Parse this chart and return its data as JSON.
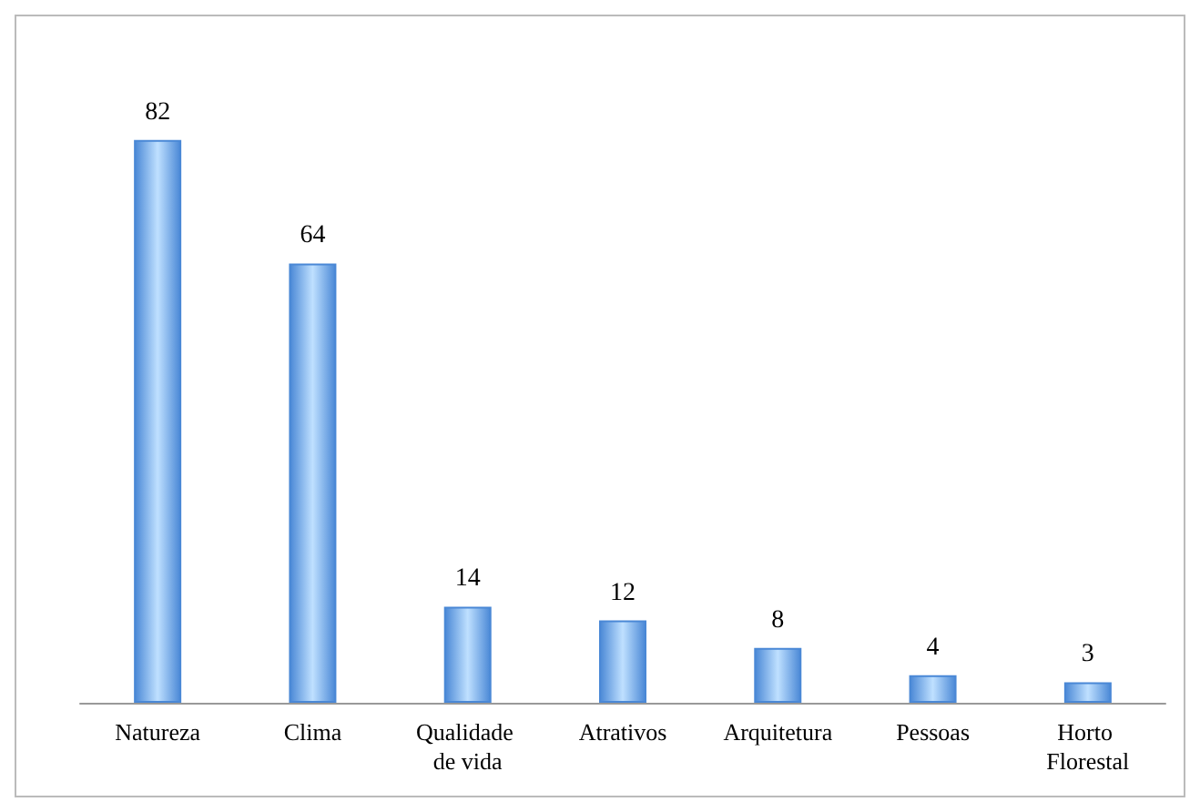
{
  "chart_data": {
    "type": "bar",
    "categories": [
      "Natureza",
      "Clima",
      "Qualidade de vida",
      "Atrativos",
      "Arquitetura",
      "Pessoas",
      "Horto Florestal"
    ],
    "values": [
      82,
      64,
      14,
      12,
      8,
      4,
      3
    ],
    "color": "#4a88d6",
    "data_labels": true
  }
}
